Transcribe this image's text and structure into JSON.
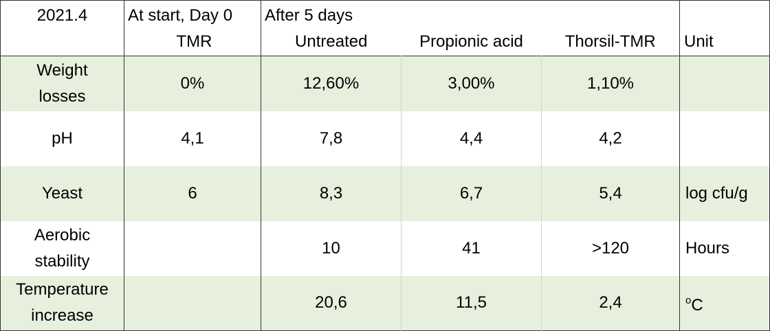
{
  "header": {
    "year": "2021.4",
    "start_label": "At start, Day 0",
    "start_sub": "TMR",
    "after_label": "After 5 days",
    "col_untreated": "Untreated",
    "col_propionic": "Propionic acid",
    "col_thorsil": "Thorsil-TMR",
    "col_unit": "Unit"
  },
  "rows": [
    {
      "label_1": "Weight",
      "label_2": "losses",
      "start": "0%",
      "untreated": "12,60%",
      "propionic": "3,00%",
      "thorsil": "1,10%",
      "unit": ""
    },
    {
      "label_1": "pH",
      "label_2": "",
      "start": "4,1",
      "untreated": "7,8",
      "propionic": "4,4",
      "thorsil": "4,2",
      "unit": ""
    },
    {
      "label_1": "Yeast",
      "label_2": "",
      "start": "6",
      "untreated": "8,3",
      "propionic": "6,7",
      "thorsil": "5,4",
      "unit": "log cfu/g"
    },
    {
      "label_1": "Aerobic",
      "label_2": "stability",
      "start": "",
      "untreated": "10",
      "propionic": "41",
      "thorsil": ">120",
      "unit": "Hours"
    },
    {
      "label_1": "Temperature",
      "label_2": "increase",
      "start": "",
      "untreated": "20,6",
      "propionic": "11,5",
      "thorsil": "2,4",
      "unit_sup": "o",
      "unit": "C"
    }
  ],
  "colors": {
    "band": "#e6f0dc",
    "border": "#333333"
  }
}
